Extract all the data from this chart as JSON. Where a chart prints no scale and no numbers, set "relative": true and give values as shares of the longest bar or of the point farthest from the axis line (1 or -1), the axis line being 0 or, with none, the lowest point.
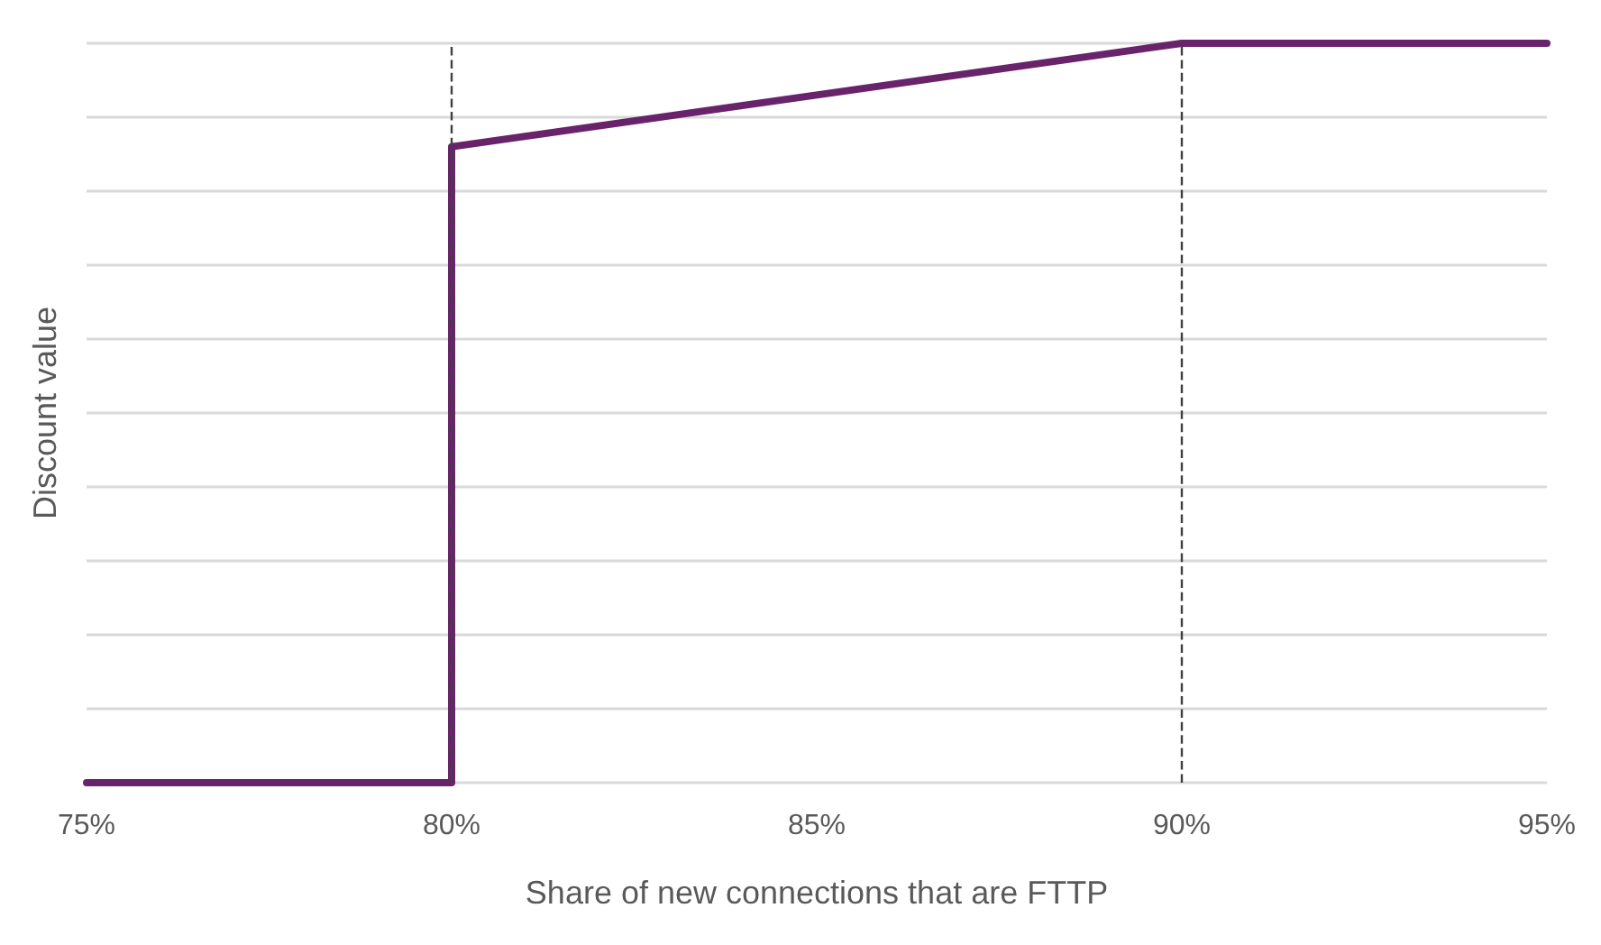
{
  "chart_data": {
    "type": "line",
    "relative": true,
    "xlabel": "Share of new connections that are FTTP",
    "ylabel": "Discount value",
    "xlim": [
      75,
      95
    ],
    "xticks": [
      {
        "value": 75,
        "label": "75%"
      },
      {
        "value": 80,
        "label": "80%"
      },
      {
        "value": 85,
        "label": "85%"
      },
      {
        "value": 90,
        "label": "90%"
      },
      {
        "value": 95,
        "label": "95%"
      }
    ],
    "series": [
      {
        "color": "#68236b",
        "x": [
          75,
          80,
          80,
          90,
          95
        ],
        "values": [
          0,
          0,
          0.86,
          1,
          1
        ]
      }
    ],
    "ref_lines": [
      {
        "axis": "x",
        "value": 80,
        "color": "#404040",
        "line_style": "dashed"
      },
      {
        "axis": "x",
        "value": 90,
        "color": "#404040",
        "line_style": "dashed"
      }
    ],
    "grid": "y",
    "marker": "none",
    "line_style": "solid"
  }
}
